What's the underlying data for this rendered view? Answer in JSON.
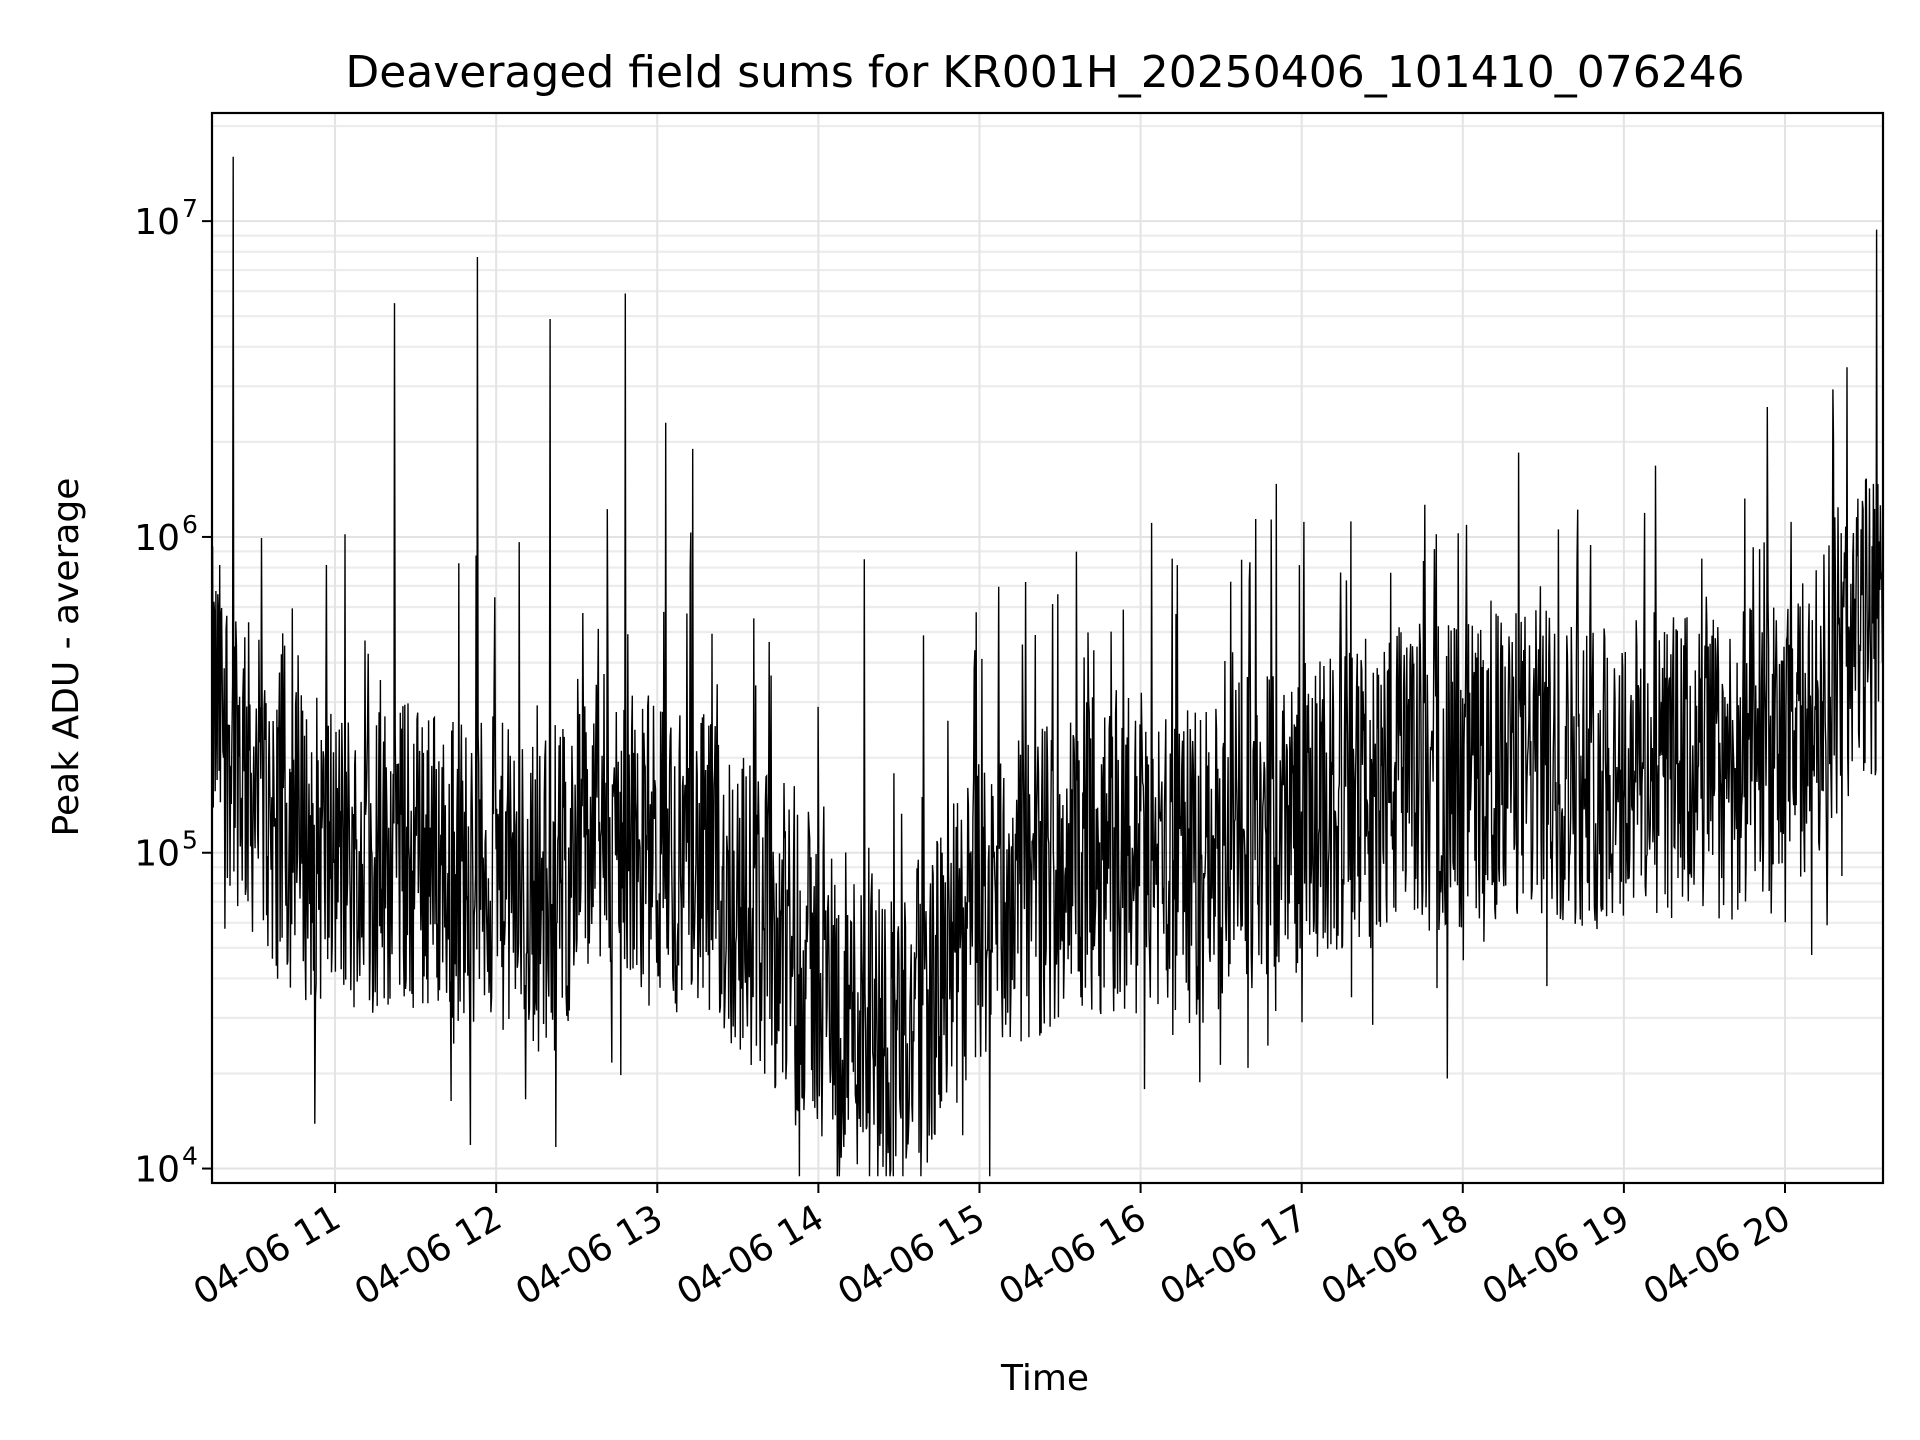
{
  "chart_data": {
    "type": "line",
    "title": "Deaveraged field sums for KR001H_20250406_101410_076246",
    "xlabel": "Time",
    "ylabel": "Peak ADU - average",
    "yscale": "log",
    "ylim": [
      9000,
      22000000
    ],
    "xlim": [
      "2025-04-06 10:14:10",
      "2025-04-06 20:36:30"
    ],
    "grid": true,
    "x_ticks": [
      {
        "t": "2025-04-06 11:00:00",
        "label": "04-06 11"
      },
      {
        "t": "2025-04-06 12:00:00",
        "label": "04-06 12"
      },
      {
        "t": "2025-04-06 13:00:00",
        "label": "04-06 13"
      },
      {
        "t": "2025-04-06 14:00:00",
        "label": "04-06 14"
      },
      {
        "t": "2025-04-06 15:00:00",
        "label": "04-06 15"
      },
      {
        "t": "2025-04-06 16:00:00",
        "label": "04-06 16"
      },
      {
        "t": "2025-04-06 17:00:00",
        "label": "04-06 17"
      },
      {
        "t": "2025-04-06 18:00:00",
        "label": "04-06 18"
      },
      {
        "t": "2025-04-06 19:00:00",
        "label": "04-06 19"
      },
      {
        "t": "2025-04-06 20:00:00",
        "label": "04-06 20"
      }
    ],
    "y_ticks": [
      {
        "value": 10000,
        "base": "10",
        "exp": "4"
      },
      {
        "value": 100000,
        "base": "10",
        "exp": "5"
      },
      {
        "value": 1000000,
        "base": "10",
        "exp": "6"
      },
      {
        "value": 10000000,
        "base": "10",
        "exp": "7"
      }
    ],
    "series": [
      {
        "color": "#000000",
        "x": [
          "2025-04-06 10:14:10",
          "2025-04-06 10:20:00",
          "2025-04-06 10:30:00",
          "2025-04-06 10:40:00",
          "2025-04-06 10:50:00",
          "2025-04-06 11:00:00",
          "2025-04-06 11:10:00",
          "2025-04-06 11:20:00",
          "2025-04-06 11:30:00",
          "2025-04-06 11:40:00",
          "2025-04-06 11:50:00",
          "2025-04-06 12:00:00",
          "2025-04-06 12:10:00",
          "2025-04-06 12:20:00",
          "2025-04-06 12:30:00",
          "2025-04-06 12:40:00",
          "2025-04-06 12:50:00",
          "2025-04-06 13:00:00",
          "2025-04-06 13:10:00",
          "2025-04-06 13:20:00",
          "2025-04-06 13:30:00",
          "2025-04-06 13:40:00",
          "2025-04-06 13:50:00",
          "2025-04-06 14:00:00",
          "2025-04-06 14:10:00",
          "2025-04-06 14:20:00",
          "2025-04-06 14:30:00",
          "2025-04-06 14:40:00",
          "2025-04-06 14:50:00",
          "2025-04-06 15:00:00",
          "2025-04-06 15:10:00",
          "2025-04-06 15:20:00",
          "2025-04-06 15:30:00",
          "2025-04-06 15:40:00",
          "2025-04-06 15:50:00",
          "2025-04-06 16:00:00",
          "2025-04-06 16:10:00",
          "2025-04-06 16:20:00",
          "2025-04-06 16:30:00",
          "2025-04-06 16:40:00",
          "2025-04-06 16:50:00",
          "2025-04-06 17:00:00",
          "2025-04-06 17:10:00",
          "2025-04-06 17:20:00",
          "2025-04-06 17:30:00",
          "2025-04-06 17:40:00",
          "2025-04-06 17:50:00",
          "2025-04-06 18:00:00",
          "2025-04-06 18:10:00",
          "2025-04-06 18:20:00",
          "2025-04-06 18:30:00",
          "2025-04-06 18:40:00",
          "2025-04-06 18:50:00",
          "2025-04-06 19:00:00",
          "2025-04-06 19:10:00",
          "2025-04-06 19:20:00",
          "2025-04-06 19:30:00",
          "2025-04-06 19:40:00",
          "2025-04-06 19:50:00",
          "2025-04-06 20:00:00",
          "2025-04-06 20:10:00",
          "2025-04-06 20:20:00",
          "2025-04-06 20:30:00",
          "2025-04-06 20:36:30"
        ],
        "y": [
          300000,
          250000,
          160000,
          120000,
          105000,
          100000,
          95000,
          100000,
          100000,
          95000,
          90000,
          85000,
          75000,
          70000,
          100000,
          120000,
          110000,
          100000,
          95000,
          85000,
          70000,
          60000,
          50000,
          40000,
          32000,
          28000,
          26000,
          32000,
          45000,
          65000,
          70000,
          80000,
          90000,
          100000,
          95000,
          90000,
          90000,
          90000,
          100000,
          115000,
          125000,
          130000,
          135000,
          150000,
          160000,
          170000,
          175000,
          180000,
          185000,
          190000,
          190000,
          185000,
          180000,
          185000,
          190000,
          185000,
          185000,
          190000,
          190000,
          200000,
          260000,
          420000,
          500000,
          600000
        ],
        "spikes": [
          {
            "t": "2025-04-06 10:22:00",
            "value": 16000000
          },
          {
            "t": "2025-04-06 11:22:00",
            "value": 5500000
          },
          {
            "t": "2025-04-06 11:53:00",
            "value": 7700000
          },
          {
            "t": "2025-04-06 12:20:00",
            "value": 4900000
          },
          {
            "t": "2025-04-06 12:48:00",
            "value": 5900000
          },
          {
            "t": "2025-04-06 13:03:00",
            "value": 2300000
          },
          {
            "t": "2025-04-06 13:13:00",
            "value": 1900000
          },
          {
            "t": "2025-04-06 14:17:00",
            "value": 850000
          },
          {
            "t": "2025-04-06 15:17:00",
            "value": 720000
          },
          {
            "t": "2025-04-06 16:13:00",
            "value": 570000
          },
          {
            "t": "2025-04-06 17:33:00",
            "value": 770000
          },
          {
            "t": "2025-04-06 20:34:00",
            "value": 9400000
          }
        ]
      }
    ]
  }
}
